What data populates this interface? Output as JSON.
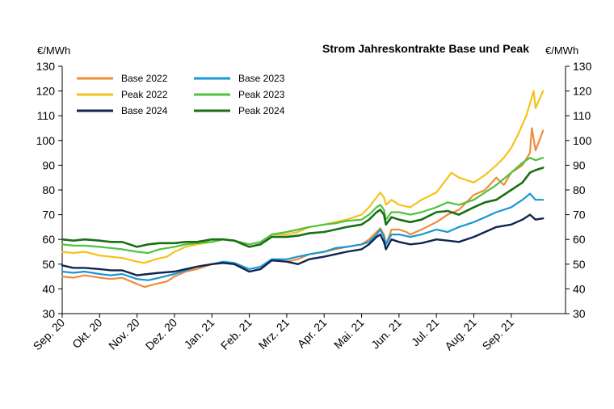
{
  "chart_data": {
    "type": "line",
    "title": "Strom Jahreskontrakte Base und Peak",
    "ylabel_left": "€/MWh",
    "ylabel_right": "€/MWh",
    "ylim": [
      30,
      130
    ],
    "yticks": [
      30,
      40,
      50,
      60,
      70,
      80,
      90,
      100,
      110,
      120,
      130
    ],
    "grid": false,
    "legend_position": "top-left",
    "categories": [
      "Sep. 20",
      "Okt. 20",
      "Nov. 20",
      "Dez. 20",
      "Jan. 21",
      "Feb. 21",
      "Mrz. 21",
      "Apr. 21",
      "Mai. 21",
      "Jun. 21",
      "Jul. 21",
      "Aug. 21",
      "Sep. 21"
    ],
    "x_end": 13.45,
    "series": [
      {
        "name": "Base 2022",
        "color": "#F08C3C",
        "width": 2.2,
        "points": [
          [
            0,
            45
          ],
          [
            0.3,
            44.5
          ],
          [
            0.6,
            45.5
          ],
          [
            1,
            44.5
          ],
          [
            1.3,
            44
          ],
          [
            1.6,
            44.5
          ],
          [
            2,
            42
          ],
          [
            2.2,
            40.8
          ],
          [
            2.5,
            42
          ],
          [
            2.8,
            43
          ],
          [
            3,
            45
          ],
          [
            3.3,
            47
          ],
          [
            3.6,
            48
          ],
          [
            4,
            50
          ],
          [
            4.3,
            50.5
          ],
          [
            4.6,
            50
          ],
          [
            5,
            47
          ],
          [
            5.3,
            48
          ],
          [
            5.6,
            52
          ],
          [
            6,
            51
          ],
          [
            6.3,
            52
          ],
          [
            6.6,
            54
          ],
          [
            7,
            55
          ],
          [
            7.3,
            56
          ],
          [
            7.6,
            57
          ],
          [
            8,
            58
          ],
          [
            8.2,
            60
          ],
          [
            8.4,
            63
          ],
          [
            8.5,
            64.5
          ],
          [
            8.6,
            62
          ],
          [
            8.65,
            58
          ],
          [
            8.8,
            64
          ],
          [
            9,
            64
          ],
          [
            9.2,
            63
          ],
          [
            9.3,
            62
          ],
          [
            9.6,
            64
          ],
          [
            10,
            67
          ],
          [
            10.3,
            70
          ],
          [
            10.6,
            72
          ],
          [
            11,
            78
          ],
          [
            11.3,
            80
          ],
          [
            11.6,
            85
          ],
          [
            11.8,
            82
          ],
          [
            12,
            87
          ],
          [
            12.3,
            90
          ],
          [
            12.5,
            95
          ],
          [
            12.55,
            105
          ],
          [
            12.65,
            96
          ],
          [
            12.75,
            100
          ],
          [
            12.85,
            104
          ]
        ]
      },
      {
        "name": "Base 2023",
        "color": "#1B96D2",
        "width": 2.2,
        "points": [
          [
            0,
            47
          ],
          [
            0.3,
            46.5
          ],
          [
            0.6,
            47
          ],
          [
            1,
            46
          ],
          [
            1.3,
            45.5
          ],
          [
            1.6,
            46
          ],
          [
            2,
            44
          ],
          [
            2.3,
            43.5
          ],
          [
            2.6,
            44.5
          ],
          [
            3,
            46
          ],
          [
            3.3,
            47.5
          ],
          [
            3.6,
            49
          ],
          [
            4,
            50
          ],
          [
            4.3,
            51
          ],
          [
            4.6,
            50.5
          ],
          [
            5,
            48
          ],
          [
            5.3,
            49
          ],
          [
            5.6,
            52
          ],
          [
            6,
            52
          ],
          [
            6.3,
            53
          ],
          [
            6.6,
            54
          ],
          [
            7,
            55
          ],
          [
            7.3,
            56.5
          ],
          [
            7.6,
            57
          ],
          [
            8,
            58
          ],
          [
            8.2,
            59
          ],
          [
            8.4,
            62
          ],
          [
            8.5,
            64
          ],
          [
            8.6,
            61
          ],
          [
            8.65,
            58
          ],
          [
            8.8,
            62
          ],
          [
            9,
            62
          ],
          [
            9.3,
            61
          ],
          [
            9.6,
            62
          ],
          [
            10,
            64
          ],
          [
            10.3,
            63
          ],
          [
            10.6,
            65
          ],
          [
            11,
            67
          ],
          [
            11.3,
            69
          ],
          [
            11.6,
            71
          ],
          [
            12,
            73
          ],
          [
            12.3,
            76
          ],
          [
            12.5,
            78.5
          ],
          [
            12.65,
            76
          ],
          [
            12.85,
            76
          ]
        ]
      },
      {
        "name": "Peak 2022",
        "color": "#F5C21B",
        "width": 2.2,
        "points": [
          [
            0,
            55
          ],
          [
            0.3,
            54.5
          ],
          [
            0.6,
            55
          ],
          [
            1,
            53.5
          ],
          [
            1.3,
            53
          ],
          [
            1.6,
            52.5
          ],
          [
            2,
            51
          ],
          [
            2.2,
            50.5
          ],
          [
            2.5,
            52
          ],
          [
            2.8,
            53
          ],
          [
            3,
            55
          ],
          [
            3.3,
            57
          ],
          [
            3.6,
            58
          ],
          [
            4,
            59
          ],
          [
            4.3,
            60
          ],
          [
            4.6,
            59.5
          ],
          [
            5,
            57
          ],
          [
            5.3,
            58
          ],
          [
            5.6,
            62
          ],
          [
            6,
            62
          ],
          [
            6.3,
            63
          ],
          [
            6.6,
            65
          ],
          [
            7,
            66
          ],
          [
            7.3,
            67
          ],
          [
            7.6,
            68
          ],
          [
            8,
            70
          ],
          [
            8.2,
            73
          ],
          [
            8.4,
            77
          ],
          [
            8.5,
            79
          ],
          [
            8.6,
            77
          ],
          [
            8.65,
            74
          ],
          [
            8.8,
            76
          ],
          [
            9,
            74
          ],
          [
            9.3,
            73
          ],
          [
            9.6,
            76
          ],
          [
            10,
            79
          ],
          [
            10.2,
            83
          ],
          [
            10.4,
            87
          ],
          [
            10.6,
            85
          ],
          [
            11,
            83
          ],
          [
            11.3,
            86
          ],
          [
            11.6,
            90
          ],
          [
            11.8,
            93
          ],
          [
            12,
            97
          ],
          [
            12.2,
            103
          ],
          [
            12.4,
            110
          ],
          [
            12.5,
            115
          ],
          [
            12.6,
            120
          ],
          [
            12.65,
            113
          ],
          [
            12.85,
            120
          ]
        ]
      },
      {
        "name": "Peak 2023",
        "color": "#4DC33B",
        "width": 2.2,
        "points": [
          [
            0,
            58
          ],
          [
            0.3,
            57.5
          ],
          [
            0.6,
            57.5
          ],
          [
            1,
            57
          ],
          [
            1.3,
            56.5
          ],
          [
            1.6,
            56
          ],
          [
            2,
            55
          ],
          [
            2.3,
            54.5
          ],
          [
            2.6,
            56
          ],
          [
            3,
            57
          ],
          [
            3.3,
            58
          ],
          [
            3.6,
            58.5
          ],
          [
            4,
            59
          ],
          [
            4.3,
            60
          ],
          [
            4.6,
            59.5
          ],
          [
            5,
            58
          ],
          [
            5.3,
            59
          ],
          [
            5.6,
            62
          ],
          [
            6,
            63
          ],
          [
            6.3,
            64
          ],
          [
            6.6,
            65
          ],
          [
            7,
            66
          ],
          [
            7.3,
            66.5
          ],
          [
            7.6,
            67.5
          ],
          [
            8,
            68
          ],
          [
            8.2,
            70
          ],
          [
            8.4,
            73
          ],
          [
            8.5,
            74
          ],
          [
            8.6,
            72
          ],
          [
            8.65,
            68
          ],
          [
            8.8,
            71
          ],
          [
            9,
            71
          ],
          [
            9.3,
            70
          ],
          [
            9.6,
            71
          ],
          [
            10,
            73
          ],
          [
            10.3,
            75
          ],
          [
            10.6,
            74
          ],
          [
            11,
            76
          ],
          [
            11.3,
            79
          ],
          [
            11.6,
            82
          ],
          [
            12,
            87
          ],
          [
            12.3,
            91
          ],
          [
            12.5,
            93
          ],
          [
            12.65,
            92
          ],
          [
            12.85,
            93
          ]
        ]
      },
      {
        "name": "Base 2024",
        "color": "#10254F",
        "width": 2.4,
        "points": [
          [
            0,
            49.5
          ],
          [
            0.3,
            48.5
          ],
          [
            0.6,
            48.5
          ],
          [
            1,
            48
          ],
          [
            1.3,
            47.5
          ],
          [
            1.6,
            47.5
          ],
          [
            2,
            45.5
          ],
          [
            2.3,
            46
          ],
          [
            2.6,
            46.5
          ],
          [
            3,
            47
          ],
          [
            3.3,
            48
          ],
          [
            3.6,
            49
          ],
          [
            4,
            50
          ],
          [
            4.3,
            50.5
          ],
          [
            4.6,
            50
          ],
          [
            5,
            47
          ],
          [
            5.3,
            48
          ],
          [
            5.6,
            51.5
          ],
          [
            6,
            51
          ],
          [
            6.3,
            50
          ],
          [
            6.6,
            52
          ],
          [
            7,
            53
          ],
          [
            7.3,
            54
          ],
          [
            7.6,
            55
          ],
          [
            8,
            56
          ],
          [
            8.2,
            58
          ],
          [
            8.4,
            61
          ],
          [
            8.5,
            62
          ],
          [
            8.6,
            59
          ],
          [
            8.65,
            56
          ],
          [
            8.8,
            60
          ],
          [
            9,
            59
          ],
          [
            9.3,
            58
          ],
          [
            9.6,
            58.5
          ],
          [
            10,
            60
          ],
          [
            10.3,
            59.5
          ],
          [
            10.6,
            59
          ],
          [
            11,
            61
          ],
          [
            11.3,
            63
          ],
          [
            11.6,
            65
          ],
          [
            12,
            66
          ],
          [
            12.3,
            68
          ],
          [
            12.5,
            70
          ],
          [
            12.65,
            68
          ],
          [
            12.85,
            68.5
          ]
        ]
      },
      {
        "name": "Peak 2024",
        "color": "#1A6E16",
        "width": 2.6,
        "points": [
          [
            0,
            60
          ],
          [
            0.3,
            59.5
          ],
          [
            0.6,
            60
          ],
          [
            1,
            59.5
          ],
          [
            1.3,
            59
          ],
          [
            1.6,
            59
          ],
          [
            2,
            57
          ],
          [
            2.3,
            58
          ],
          [
            2.6,
            58.5
          ],
          [
            3,
            58.5
          ],
          [
            3.3,
            59
          ],
          [
            3.6,
            59
          ],
          [
            4,
            60
          ],
          [
            4.3,
            60
          ],
          [
            4.6,
            59.5
          ],
          [
            5,
            57
          ],
          [
            5.3,
            58
          ],
          [
            5.6,
            61
          ],
          [
            6,
            61
          ],
          [
            6.3,
            61.5
          ],
          [
            6.6,
            62.5
          ],
          [
            7,
            63
          ],
          [
            7.3,
            64
          ],
          [
            7.6,
            65
          ],
          [
            8,
            66
          ],
          [
            8.2,
            68
          ],
          [
            8.4,
            71
          ],
          [
            8.5,
            72
          ],
          [
            8.6,
            70
          ],
          [
            8.65,
            66
          ],
          [
            8.8,
            69
          ],
          [
            9,
            68
          ],
          [
            9.3,
            67
          ],
          [
            9.6,
            68
          ],
          [
            10,
            71
          ],
          [
            10.3,
            71.5
          ],
          [
            10.6,
            70
          ],
          [
            11,
            73
          ],
          [
            11.3,
            75
          ],
          [
            11.6,
            76
          ],
          [
            12,
            80
          ],
          [
            12.3,
            83
          ],
          [
            12.5,
            87
          ],
          [
            12.65,
            88
          ],
          [
            12.85,
            89
          ]
        ]
      }
    ]
  }
}
